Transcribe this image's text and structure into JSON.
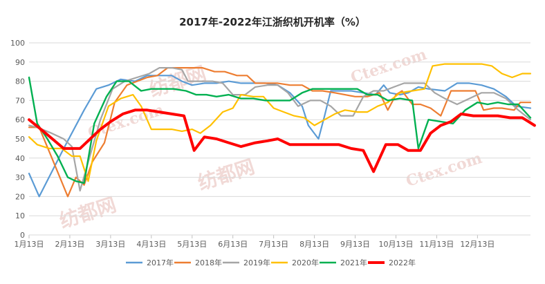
{
  "chart_data": {
    "type": "line",
    "title": "2017年-2022年江浙织机开机率（%）",
    "xlabel": "",
    "ylabel": "",
    "ylim": [
      0,
      100
    ],
    "yticks": [
      0,
      10,
      20,
      30,
      40,
      50,
      60,
      70,
      80,
      90,
      100
    ],
    "x_tick_labels": [
      "1月13日",
      "2月13日",
      "3月13日",
      "4月13日",
      "5月13日",
      "6月13日",
      "7月13日",
      "8月13日",
      "9月13日",
      "10月13日",
      "11月13日",
      "12月13日"
    ],
    "x_domain": [
      0,
      12.3
    ],
    "grid": true,
    "legend_position": "bottom",
    "watermark_text": [
      "纺都网",
      "Ctex.com"
    ],
    "series": [
      {
        "name": "2017年",
        "color": "#5b9bd5",
        "width": 2.2,
        "points": [
          [
            0,
            32
          ],
          [
            0.25,
            20
          ],
          [
            0.85,
            45
          ],
          [
            1.35,
            65
          ],
          [
            1.65,
            76
          ],
          [
            1.95,
            78
          ],
          [
            2.25,
            81
          ],
          [
            2.6,
            80
          ],
          [
            2.9,
            83
          ],
          [
            3.2,
            83
          ],
          [
            3.5,
            83
          ],
          [
            3.75,
            80
          ],
          [
            4.0,
            78
          ],
          [
            4.3,
            79
          ],
          [
            4.6,
            79
          ],
          [
            4.9,
            80
          ],
          [
            5.2,
            79
          ],
          [
            5.5,
            79
          ],
          [
            5.8,
            79
          ],
          [
            6.1,
            78
          ],
          [
            6.4,
            74
          ],
          [
            6.7,
            67
          ],
          [
            6.85,
            57
          ],
          [
            7.1,
            50
          ],
          [
            7.25,
            62
          ],
          [
            7.4,
            75
          ],
          [
            7.65,
            75
          ],
          [
            7.9,
            75
          ],
          [
            8.2,
            74
          ],
          [
            8.5,
            73
          ],
          [
            8.7,
            78
          ],
          [
            8.85,
            74
          ],
          [
            9.1,
            73
          ],
          [
            9.3,
            74
          ],
          [
            9.55,
            77
          ],
          [
            9.8,
            76
          ],
          [
            10.2,
            75
          ],
          [
            10.5,
            79
          ],
          [
            10.8,
            79
          ],
          [
            11.1,
            78
          ],
          [
            11.4,
            76
          ],
          [
            11.7,
            72
          ],
          [
            11.95,
            67
          ],
          [
            12.3,
            66
          ]
        ]
      },
      {
        "name": "2018年",
        "color": "#ed7d31",
        "width": 2.2,
        "points": [
          [
            0,
            56
          ],
          [
            0.25,
            56
          ],
          [
            0.6,
            38
          ],
          [
            0.95,
            20
          ],
          [
            1.15,
            30
          ],
          [
            1.35,
            26
          ],
          [
            1.55,
            38
          ],
          [
            1.85,
            48
          ],
          [
            2.1,
            69
          ],
          [
            2.4,
            78
          ],
          [
            2.65,
            80
          ],
          [
            2.9,
            82
          ],
          [
            3.15,
            83
          ],
          [
            3.4,
            87
          ],
          [
            3.7,
            87
          ],
          [
            4.0,
            87
          ],
          [
            4.25,
            87
          ],
          [
            4.55,
            85
          ],
          [
            4.8,
            85
          ],
          [
            5.1,
            83
          ],
          [
            5.35,
            83
          ],
          [
            5.55,
            79
          ],
          [
            5.8,
            79
          ],
          [
            6.1,
            79
          ],
          [
            6.4,
            78
          ],
          [
            6.7,
            78
          ],
          [
            6.95,
            75
          ],
          [
            7.2,
            75
          ],
          [
            7.5,
            74
          ],
          [
            7.75,
            73
          ],
          [
            8.0,
            72
          ],
          [
            8.3,
            72
          ],
          [
            8.6,
            74
          ],
          [
            8.8,
            65
          ],
          [
            9.0,
            73
          ],
          [
            9.15,
            75
          ],
          [
            9.4,
            68
          ],
          [
            9.6,
            68
          ],
          [
            9.85,
            66
          ],
          [
            10.1,
            62
          ],
          [
            10.35,
            75
          ],
          [
            10.7,
            75
          ],
          [
            10.95,
            75
          ],
          [
            11.15,
            65
          ],
          [
            11.4,
            66
          ],
          [
            11.6,
            66
          ],
          [
            11.9,
            65
          ],
          [
            12.05,
            69
          ],
          [
            12.3,
            69
          ]
        ]
      },
      {
        "name": "2019年",
        "color": "#a5a5a5",
        "width": 2.2,
        "points": [
          [
            0,
            57
          ],
          [
            0.2,
            56
          ],
          [
            0.55,
            53
          ],
          [
            0.85,
            50
          ],
          [
            1.05,
            46
          ],
          [
            1.25,
            23
          ],
          [
            1.45,
            38
          ],
          [
            1.75,
            60
          ],
          [
            2.05,
            76
          ],
          [
            2.35,
            80
          ],
          [
            2.65,
            82
          ],
          [
            2.95,
            84
          ],
          [
            3.2,
            87
          ],
          [
            3.5,
            87
          ],
          [
            3.75,
            86
          ],
          [
            3.9,
            80
          ],
          [
            4.2,
            80
          ],
          [
            4.5,
            80
          ],
          [
            4.75,
            79
          ],
          [
            5.0,
            73
          ],
          [
            5.3,
            73
          ],
          [
            5.55,
            77
          ],
          [
            5.85,
            78
          ],
          [
            6.1,
            78
          ],
          [
            6.35,
            74
          ],
          [
            6.6,
            67
          ],
          [
            6.9,
            70
          ],
          [
            7.15,
            70
          ],
          [
            7.4,
            67
          ],
          [
            7.65,
            62
          ],
          [
            7.95,
            62
          ],
          [
            8.2,
            72
          ],
          [
            8.45,
            75
          ],
          [
            8.7,
            75
          ],
          [
            8.95,
            77
          ],
          [
            9.2,
            79
          ],
          [
            9.45,
            79
          ],
          [
            9.7,
            79
          ],
          [
            9.95,
            74
          ],
          [
            10.2,
            71
          ],
          [
            10.5,
            68
          ],
          [
            10.8,
            71
          ],
          [
            11.1,
            74
          ],
          [
            11.4,
            74
          ],
          [
            11.7,
            71
          ],
          [
            12.0,
            65
          ],
          [
            12.3,
            60
          ]
        ]
      },
      {
        "name": "2020年",
        "color": "#ffc000",
        "width": 2.2,
        "points": [
          [
            0,
            51
          ],
          [
            0.2,
            47
          ],
          [
            0.5,
            45
          ],
          [
            0.8,
            45
          ],
          [
            1.05,
            41
          ],
          [
            1.25,
            41
          ],
          [
            1.45,
            28
          ],
          [
            1.65,
            49
          ],
          [
            1.95,
            67
          ],
          [
            2.25,
            71
          ],
          [
            2.55,
            73
          ],
          [
            2.75,
            67
          ],
          [
            3.0,
            55
          ],
          [
            3.25,
            55
          ],
          [
            3.5,
            55
          ],
          [
            3.75,
            54
          ],
          [
            4.0,
            55
          ],
          [
            4.2,
            53
          ],
          [
            4.45,
            57
          ],
          [
            4.75,
            64
          ],
          [
            5.0,
            66
          ],
          [
            5.2,
            73
          ],
          [
            5.5,
            72
          ],
          [
            5.75,
            72
          ],
          [
            6.0,
            66
          ],
          [
            6.25,
            64
          ],
          [
            6.5,
            62
          ],
          [
            6.75,
            61
          ],
          [
            7.0,
            57
          ],
          [
            7.25,
            60
          ],
          [
            7.5,
            63
          ],
          [
            7.75,
            65
          ],
          [
            8.05,
            64
          ],
          [
            8.3,
            64
          ],
          [
            8.55,
            67
          ],
          [
            8.8,
            69
          ],
          [
            9.1,
            74
          ],
          [
            9.4,
            75
          ],
          [
            9.7,
            76
          ],
          [
            9.9,
            88
          ],
          [
            10.2,
            89
          ],
          [
            10.5,
            89
          ],
          [
            10.8,
            89
          ],
          [
            11.1,
            89
          ],
          [
            11.35,
            88
          ],
          [
            11.6,
            84
          ],
          [
            11.85,
            82
          ],
          [
            12.1,
            84
          ],
          [
            12.3,
            84
          ]
        ]
      },
      {
        "name": "2021年",
        "color": "#00b050",
        "width": 2.4,
        "points": [
          [
            0,
            82
          ],
          [
            0.2,
            58
          ],
          [
            0.45,
            50
          ],
          [
            0.7,
            41
          ],
          [
            0.95,
            30
          ],
          [
            1.15,
            28
          ],
          [
            1.35,
            27
          ],
          [
            1.6,
            58
          ],
          [
            1.9,
            72
          ],
          [
            2.15,
            80
          ],
          [
            2.45,
            80
          ],
          [
            2.75,
            75
          ],
          [
            3.0,
            76
          ],
          [
            3.3,
            76
          ],
          [
            3.55,
            76
          ],
          [
            3.85,
            75
          ],
          [
            4.1,
            73
          ],
          [
            4.35,
            73
          ],
          [
            4.6,
            72
          ],
          [
            4.9,
            73
          ],
          [
            5.2,
            71
          ],
          [
            5.5,
            71
          ],
          [
            5.8,
            70
          ],
          [
            6.1,
            70
          ],
          [
            6.4,
            70
          ],
          [
            6.7,
            74
          ],
          [
            6.95,
            76
          ],
          [
            7.2,
            76
          ],
          [
            7.5,
            76
          ],
          [
            7.75,
            76
          ],
          [
            8.05,
            76
          ],
          [
            8.3,
            73
          ],
          [
            8.55,
            73
          ],
          [
            8.8,
            70
          ],
          [
            9.1,
            71
          ],
          [
            9.4,
            70
          ],
          [
            9.55,
            45
          ],
          [
            9.8,
            60
          ],
          [
            10.1,
            59
          ],
          [
            10.4,
            58
          ],
          [
            10.7,
            65
          ],
          [
            11.0,
            69
          ],
          [
            11.25,
            68
          ],
          [
            11.5,
            69
          ],
          [
            11.75,
            68
          ],
          [
            12.0,
            68
          ],
          [
            12.3,
            61
          ]
        ]
      },
      {
        "name": "2022年",
        "color": "#ff0000",
        "width": 4,
        "points": [
          [
            0,
            60
          ],
          [
            0.35,
            54
          ],
          [
            0.85,
            45
          ],
          [
            1.25,
            45
          ],
          [
            1.5,
            50
          ],
          [
            1.75,
            55
          ],
          [
            2.0,
            59
          ],
          [
            2.3,
            63
          ],
          [
            2.6,
            65
          ],
          [
            2.9,
            65
          ],
          [
            3.2,
            64
          ],
          [
            3.5,
            63
          ],
          [
            3.8,
            62
          ],
          [
            4.05,
            44
          ],
          [
            4.3,
            51
          ],
          [
            4.6,
            50
          ],
          [
            4.9,
            48
          ],
          [
            5.2,
            46
          ],
          [
            5.55,
            48
          ],
          [
            5.85,
            49
          ],
          [
            6.1,
            50
          ],
          [
            6.4,
            47
          ],
          [
            6.7,
            47
          ],
          [
            7.0,
            47
          ],
          [
            7.3,
            47
          ],
          [
            7.6,
            47
          ],
          [
            7.9,
            45
          ],
          [
            8.2,
            44
          ],
          [
            8.45,
            33
          ],
          [
            8.75,
            47
          ],
          [
            9.05,
            47
          ],
          [
            9.3,
            44
          ],
          [
            9.6,
            44
          ],
          [
            9.85,
            53
          ],
          [
            10.1,
            57
          ],
          [
            10.35,
            59
          ],
          [
            10.6,
            63
          ],
          [
            10.9,
            62
          ],
          [
            11.2,
            62
          ],
          [
            11.5,
            62
          ],
          [
            11.8,
            61
          ],
          [
            12.1,
            61
          ],
          [
            12.4,
            57
          ]
        ]
      }
    ]
  }
}
